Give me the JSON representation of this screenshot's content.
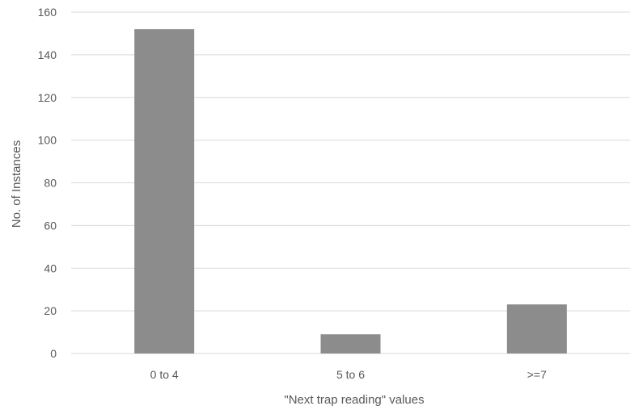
{
  "chart_data": {
    "type": "bar",
    "title": "",
    "xlabel": "\"Next trap reading\" values",
    "ylabel": "No. of Instances",
    "categories": [
      "0 to 4",
      "5 to 6",
      ">=7"
    ],
    "values": [
      152,
      9,
      23
    ],
    "ylim": [
      0,
      160
    ],
    "yticks": [
      0,
      20,
      40,
      60,
      80,
      100,
      120,
      140,
      160
    ],
    "grid": true,
    "legend": "none",
    "colors": {
      "bar": "#8c8c8c",
      "grid": "#d9d9d9",
      "text": "#595959"
    }
  }
}
